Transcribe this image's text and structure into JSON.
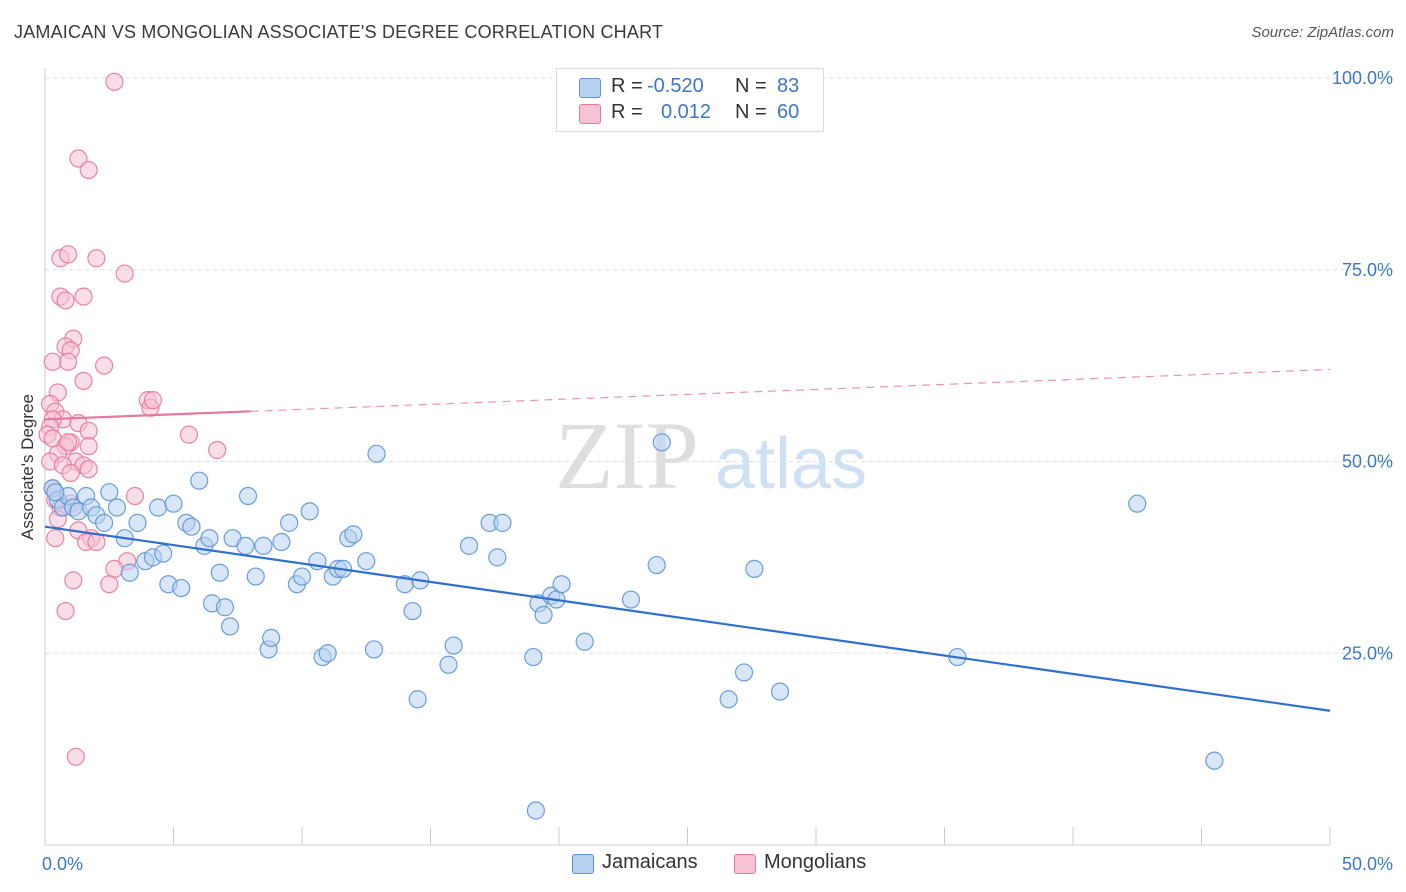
{
  "title": "JAMAICAN VS MONGOLIAN ASSOCIATE'S DEGREE CORRELATION CHART",
  "source": "Source: ZipAtlas.com",
  "watermark": {
    "zip": "ZIP",
    "atlas": "atlas"
  },
  "legend_top": {
    "rows": [
      {
        "r_label": "R =",
        "r_value": "-0.520",
        "n_label": "N =",
        "n_value": "83"
      },
      {
        "r_label": "R =",
        "r_value": "0.012",
        "n_label": "N =",
        "n_value": "60"
      }
    ]
  },
  "colors": {
    "jamaican": "#5b93d8",
    "jamaican_fill": "#b8d1f0",
    "mongolian": "#e8769d",
    "mongolian_fill": "#f6c3d4",
    "axis_text": "#3b78c6"
  },
  "chart_data": {
    "type": "scatter",
    "title": "JAMAICAN VS MONGOLIAN ASSOCIATE'S DEGREE CORRELATION CHART",
    "xlabel": "",
    "ylabel": "Associate's Degree",
    "xlim": [
      0,
      50
    ],
    "ylim": [
      0,
      100
    ],
    "x_tick_labels": [
      "0.0%",
      "50.0%"
    ],
    "y_tick_values": [
      25,
      50,
      75,
      100
    ],
    "y_tick_labels": [
      "25.0%",
      "50.0%",
      "75.0%",
      "100.0%"
    ],
    "grid": true,
    "legend_position": "bottom",
    "series": [
      {
        "name": "Jamaicans",
        "r": -0.52,
        "n": 83,
        "trend": {
          "x": [
            0,
            50
          ],
          "y": [
            41.5,
            17.5
          ],
          "dashed_from": null
        },
        "points": [
          [
            0.3,
            46.5
          ],
          [
            0.5,
            45
          ],
          [
            0.7,
            44
          ],
          [
            0.9,
            45.5
          ],
          [
            1.1,
            44
          ],
          [
            1.3,
            43.5
          ],
          [
            1.6,
            45.5
          ],
          [
            1.8,
            44
          ],
          [
            2.0,
            43
          ],
          [
            2.3,
            42
          ],
          [
            2.5,
            46
          ],
          [
            2.8,
            44
          ],
          [
            3.1,
            40
          ],
          [
            3.3,
            35.5
          ],
          [
            3.6,
            42
          ],
          [
            3.9,
            37
          ],
          [
            4.2,
            37.5
          ],
          [
            4.4,
            44
          ],
          [
            4.6,
            38
          ],
          [
            4.8,
            34
          ],
          [
            5.0,
            44.5
          ],
          [
            5.3,
            33.5
          ],
          [
            5.5,
            42
          ],
          [
            5.7,
            41.5
          ],
          [
            6.0,
            47.5
          ],
          [
            6.2,
            39
          ],
          [
            6.4,
            40
          ],
          [
            6.5,
            31.5
          ],
          [
            7.0,
            31
          ],
          [
            6.8,
            35.5
          ],
          [
            7.2,
            28.5
          ],
          [
            7.3,
            40
          ],
          [
            7.8,
            39
          ],
          [
            7.9,
            45.5
          ],
          [
            8.2,
            35
          ],
          [
            8.5,
            39
          ],
          [
            8.7,
            25.5
          ],
          [
            8.8,
            27
          ],
          [
            9.2,
            39.5
          ],
          [
            9.5,
            42
          ],
          [
            9.8,
            34
          ],
          [
            10.0,
            35
          ],
          [
            10.3,
            43.5
          ],
          [
            10.6,
            37
          ],
          [
            10.8,
            24.5
          ],
          [
            11.0,
            25
          ],
          [
            11.2,
            35
          ],
          [
            11.4,
            36
          ],
          [
            11.6,
            36
          ],
          [
            11.8,
            40
          ],
          [
            12.0,
            40.5
          ],
          [
            12.5,
            37
          ],
          [
            12.8,
            25.5
          ],
          [
            12.9,
            51
          ],
          [
            14.0,
            34
          ],
          [
            14.3,
            30.5
          ],
          [
            14.5,
            19
          ],
          [
            14.6,
            34.5
          ],
          [
            15.7,
            23.5
          ],
          [
            15.9,
            26
          ],
          [
            16.5,
            39
          ],
          [
            17.3,
            42
          ],
          [
            17.8,
            42
          ],
          [
            17.6,
            37.5
          ],
          [
            19.0,
            24.5
          ],
          [
            19.2,
            31.5
          ],
          [
            19.4,
            30
          ],
          [
            19.7,
            32.5
          ],
          [
            19.9,
            32
          ],
          [
            20.1,
            34
          ],
          [
            21.0,
            26.5
          ],
          [
            22.8,
            32
          ],
          [
            23.8,
            36.5
          ],
          [
            24.0,
            52.5
          ],
          [
            26.6,
            19
          ],
          [
            27.2,
            22.5
          ],
          [
            27.6,
            36
          ],
          [
            28.6,
            20
          ],
          [
            35.5,
            24.5
          ],
          [
            42.5,
            44.5
          ],
          [
            45.5,
            11
          ],
          [
            19.1,
            4.5
          ],
          [
            0.4,
            46
          ]
        ]
      },
      {
        "name": "Mongolians",
        "r": 0.012,
        "n": 60,
        "trend": {
          "x": [
            0,
            50
          ],
          "y": [
            55.5,
            62
          ],
          "dashed_from": 8
        },
        "points": [
          [
            2.7,
            99.5
          ],
          [
            1.3,
            89.5
          ],
          [
            1.7,
            88
          ],
          [
            0.6,
            76.5
          ],
          [
            0.9,
            77
          ],
          [
            2.0,
            76.5
          ],
          [
            3.1,
            74.5
          ],
          [
            0.6,
            71.5
          ],
          [
            1.5,
            71.5
          ],
          [
            0.8,
            71
          ],
          [
            1.1,
            66
          ],
          [
            0.8,
            65
          ],
          [
            1.0,
            64.5
          ],
          [
            0.3,
            63
          ],
          [
            0.9,
            63
          ],
          [
            2.3,
            62.5
          ],
          [
            1.5,
            60.5
          ],
          [
            0.5,
            59
          ],
          [
            0.2,
            57.5
          ],
          [
            0.4,
            56.5
          ],
          [
            0.7,
            55.5
          ],
          [
            0.3,
            55.5
          ],
          [
            0.2,
            54.5
          ],
          [
            1.3,
            55
          ],
          [
            1.7,
            54
          ],
          [
            0.1,
            53.5
          ],
          [
            0.3,
            53
          ],
          [
            1.0,
            52.5
          ],
          [
            0.8,
            52
          ],
          [
            1.7,
            52
          ],
          [
            0.5,
            51
          ],
          [
            0.2,
            50
          ],
          [
            1.2,
            50
          ],
          [
            1.5,
            49.5
          ],
          [
            0.7,
            49.5
          ],
          [
            1.7,
            49
          ],
          [
            1.0,
            48.5
          ],
          [
            4.0,
            58
          ],
          [
            4.1,
            57
          ],
          [
            4.2,
            58
          ],
          [
            5.6,
            53.5
          ],
          [
            6.7,
            51.5
          ],
          [
            3.5,
            45.5
          ],
          [
            0.4,
            45
          ],
          [
            0.6,
            44
          ],
          [
            1.0,
            44.5
          ],
          [
            0.5,
            42.5
          ],
          [
            1.3,
            41
          ],
          [
            1.8,
            40
          ],
          [
            0.4,
            40
          ],
          [
            1.6,
            39.5
          ],
          [
            2.0,
            39.5
          ],
          [
            3.2,
            37
          ],
          [
            2.7,
            36
          ],
          [
            1.1,
            34.5
          ],
          [
            2.5,
            34
          ],
          [
            0.8,
            30.5
          ],
          [
            1.2,
            11.5
          ],
          [
            0.3,
            46.5
          ],
          [
            0.9,
            52.5
          ]
        ]
      }
    ]
  },
  "legend_bottom": {
    "items": [
      "Jamaicans",
      "Mongolians"
    ]
  }
}
